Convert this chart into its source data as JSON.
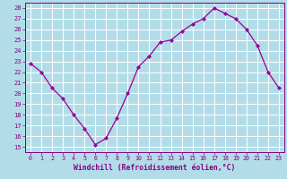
{
  "x": [
    0,
    1,
    2,
    3,
    4,
    5,
    6,
    7,
    8,
    9,
    10,
    11,
    12,
    13,
    14,
    15,
    16,
    17,
    18,
    19,
    20,
    21,
    22,
    23
  ],
  "y": [
    22.8,
    22.0,
    20.5,
    19.5,
    18.0,
    16.7,
    15.2,
    15.8,
    17.7,
    20.0,
    22.5,
    23.5,
    24.8,
    25.0,
    25.8,
    26.5,
    27.0,
    28.0,
    27.5,
    27.0,
    26.0,
    24.5,
    22.0,
    20.5
  ],
  "xlim": [
    -0.5,
    23.5
  ],
  "ylim": [
    14.5,
    28.5
  ],
  "yticks": [
    15,
    16,
    17,
    18,
    19,
    20,
    21,
    22,
    23,
    24,
    25,
    26,
    27,
    28
  ],
  "xticks": [
    0,
    1,
    2,
    3,
    4,
    5,
    6,
    7,
    8,
    9,
    10,
    11,
    12,
    13,
    14,
    15,
    16,
    17,
    18,
    19,
    20,
    21,
    22,
    23
  ],
  "xlabel": "Windchill (Refroidissement éolien,°C)",
  "line_color": "#990099",
  "marker_color": "#990099",
  "bg_color": "#b2dde8",
  "grid_color": "#ffffff",
  "tick_color": "#800080",
  "label_color": "#800080"
}
